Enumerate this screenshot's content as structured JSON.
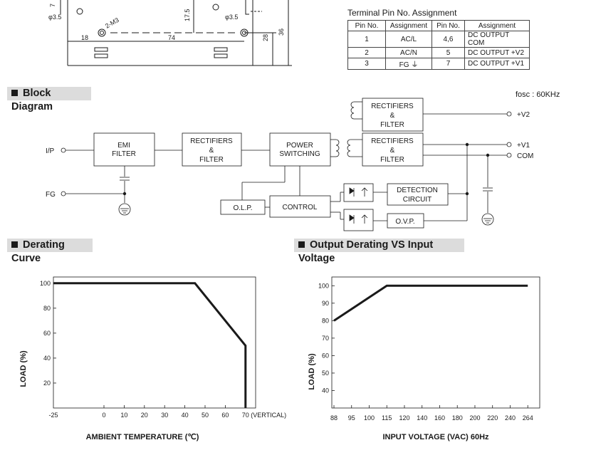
{
  "mech": {
    "labels": {
      "d1": "7",
      "d2": "17.5",
      "d3": "28",
      "d4": "36",
      "d5": "18",
      "d6": "74",
      "hole1": "φ3.5",
      "hole2": "φ3.5",
      "screw": "2-M3"
    }
  },
  "pin_table": {
    "title": "Terminal Pin No.  Assignment",
    "headers": [
      "Pin No.",
      "Assignment",
      "Pin No.",
      "Assignment"
    ],
    "rows": [
      [
        "1",
        "AC/L",
        "4,6",
        "DC OUTPUT COM"
      ],
      [
        "2",
        "AC/N",
        "5",
        "DC OUTPUT +V2"
      ],
      [
        "3",
        "FG ⏚",
        "7",
        "DC OUTPUT +V1"
      ]
    ]
  },
  "block_diagram": {
    "section_title": "Block Diagram",
    "fosc": "fosc : 60KHz",
    "inputs": {
      "ip": "I/P",
      "fg": "FG"
    },
    "outputs": {
      "v2": "+V2",
      "v1": "+V1",
      "com": "COM"
    },
    "blocks": {
      "emi": [
        "EMI",
        "FILTER"
      ],
      "rect_in": [
        "RECTIFIERS",
        "&",
        "FILTER"
      ],
      "power": [
        "POWER",
        "SWITCHING"
      ],
      "rect_v2": [
        "RECTIFIERS",
        "&",
        "FILTER"
      ],
      "rect_v1": [
        "RECTIFIERS",
        "&",
        "FILTER"
      ],
      "detection": [
        "DETECTION",
        "CIRCUIT"
      ],
      "control": "CONTROL",
      "olp": "O.L.P.",
      "ovp": "O.V.P."
    }
  },
  "derating_curve": {
    "section_title": "Derating Curve",
    "chart_data": {
      "type": "line",
      "xlabel": "AMBIENT TEMPERATURE (℃)",
      "ylabel": "LOAD (%)",
      "x_ticks": [
        "-25",
        "0",
        "10",
        "20",
        "30",
        "40",
        "50",
        "60",
        "70 (VERTICAL)"
      ],
      "y_ticks": [
        "20",
        "40",
        "60",
        "80",
        "100"
      ],
      "xlim": [
        -25,
        75
      ],
      "ylim": [
        0,
        105
      ],
      "series": [
        {
          "x": [
            -25,
            45,
            70,
            70
          ],
          "y": [
            100,
            100,
            50,
            0
          ]
        }
      ]
    }
  },
  "input_derating": {
    "section_title": "Output Derating VS Input Voltage",
    "chart_data": {
      "type": "line",
      "xlabel": "INPUT VOLTAGE (VAC) 60Hz",
      "ylabel": "LOAD (%)",
      "x_ticks": [
        "88",
        "95",
        "100",
        "115",
        "120",
        "140",
        "160",
        "180",
        "200",
        "220",
        "240",
        "264"
      ],
      "y_ticks": [
        "40",
        "50",
        "60",
        "70",
        "80",
        "90",
        "100"
      ],
      "ylim": [
        30,
        105
      ],
      "series": [
        {
          "x": [
            "88",
            "115",
            "264"
          ],
          "y": [
            80,
            100,
            100
          ]
        }
      ]
    }
  }
}
